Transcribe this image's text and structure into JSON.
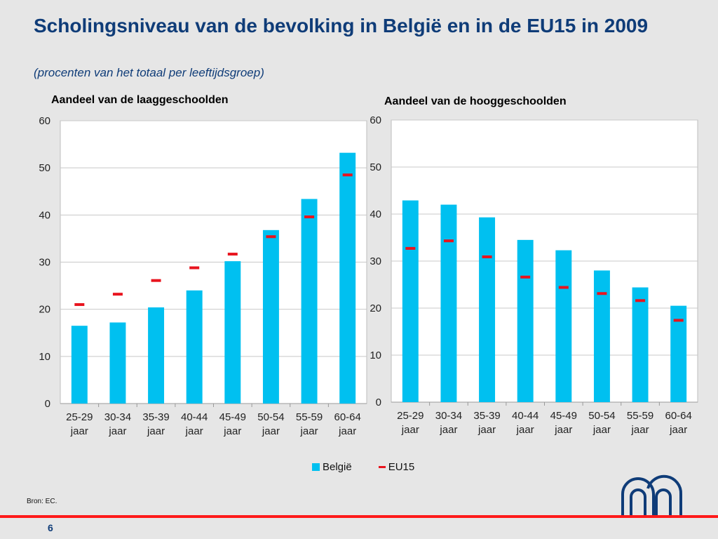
{
  "header": {
    "title": "Scholingsniveau van de bevolking in België en in de EU15 in 2009",
    "subtitle": "(procenten van het totaal per leeftijdsgroep)"
  },
  "colors": {
    "belgium": "#00c0f0",
    "eu15": "#e8141e",
    "title": "#0f3c78",
    "rule": "#ff1a1a"
  },
  "legend": {
    "belgium": "België",
    "eu15": "EU15"
  },
  "footer": {
    "source": "Bron: EC.",
    "page": "6"
  },
  "chart_data": [
    {
      "type": "bar",
      "title": "Aandeel van de laaggeschoolden",
      "categories": [
        "25-29 jaar",
        "30-34 jaar",
        "35-39 jaar",
        "40-44 jaar",
        "45-49 jaar",
        "50-54 jaar",
        "55-59 jaar",
        "60-64 jaar"
      ],
      "series": [
        {
          "name": "België",
          "kind": "bar",
          "values": [
            16.5,
            17.2,
            20.4,
            24.0,
            30.2,
            36.8,
            43.4,
            53.2
          ]
        },
        {
          "name": "EU15",
          "kind": "marker",
          "values": [
            21.0,
            23.2,
            26.1,
            28.8,
            31.7,
            35.4,
            39.6,
            48.5
          ]
        }
      ],
      "ylim": [
        0,
        60
      ],
      "yticks": [
        0,
        10,
        20,
        30,
        40,
        50,
        60
      ],
      "grid": true,
      "legend": "bottom"
    },
    {
      "type": "bar",
      "title": "Aandeel van de hooggeschoolden",
      "categories": [
        "25-29 jaar",
        "30-34 jaar",
        "35-39 jaar",
        "40-44 jaar",
        "45-49 jaar",
        "50-54 jaar",
        "55-59 jaar",
        "60-64 jaar"
      ],
      "series": [
        {
          "name": "België",
          "kind": "bar",
          "values": [
            42.9,
            42.0,
            39.3,
            34.5,
            32.3,
            28.0,
            24.4,
            20.5
          ]
        },
        {
          "name": "EU15",
          "kind": "marker",
          "values": [
            32.7,
            34.3,
            30.9,
            26.6,
            24.4,
            23.1,
            21.6,
            17.4
          ]
        }
      ],
      "ylim": [
        0,
        60
      ],
      "yticks": [
        0,
        10,
        20,
        30,
        40,
        50,
        60
      ],
      "grid": true,
      "legend": "bottom"
    }
  ]
}
